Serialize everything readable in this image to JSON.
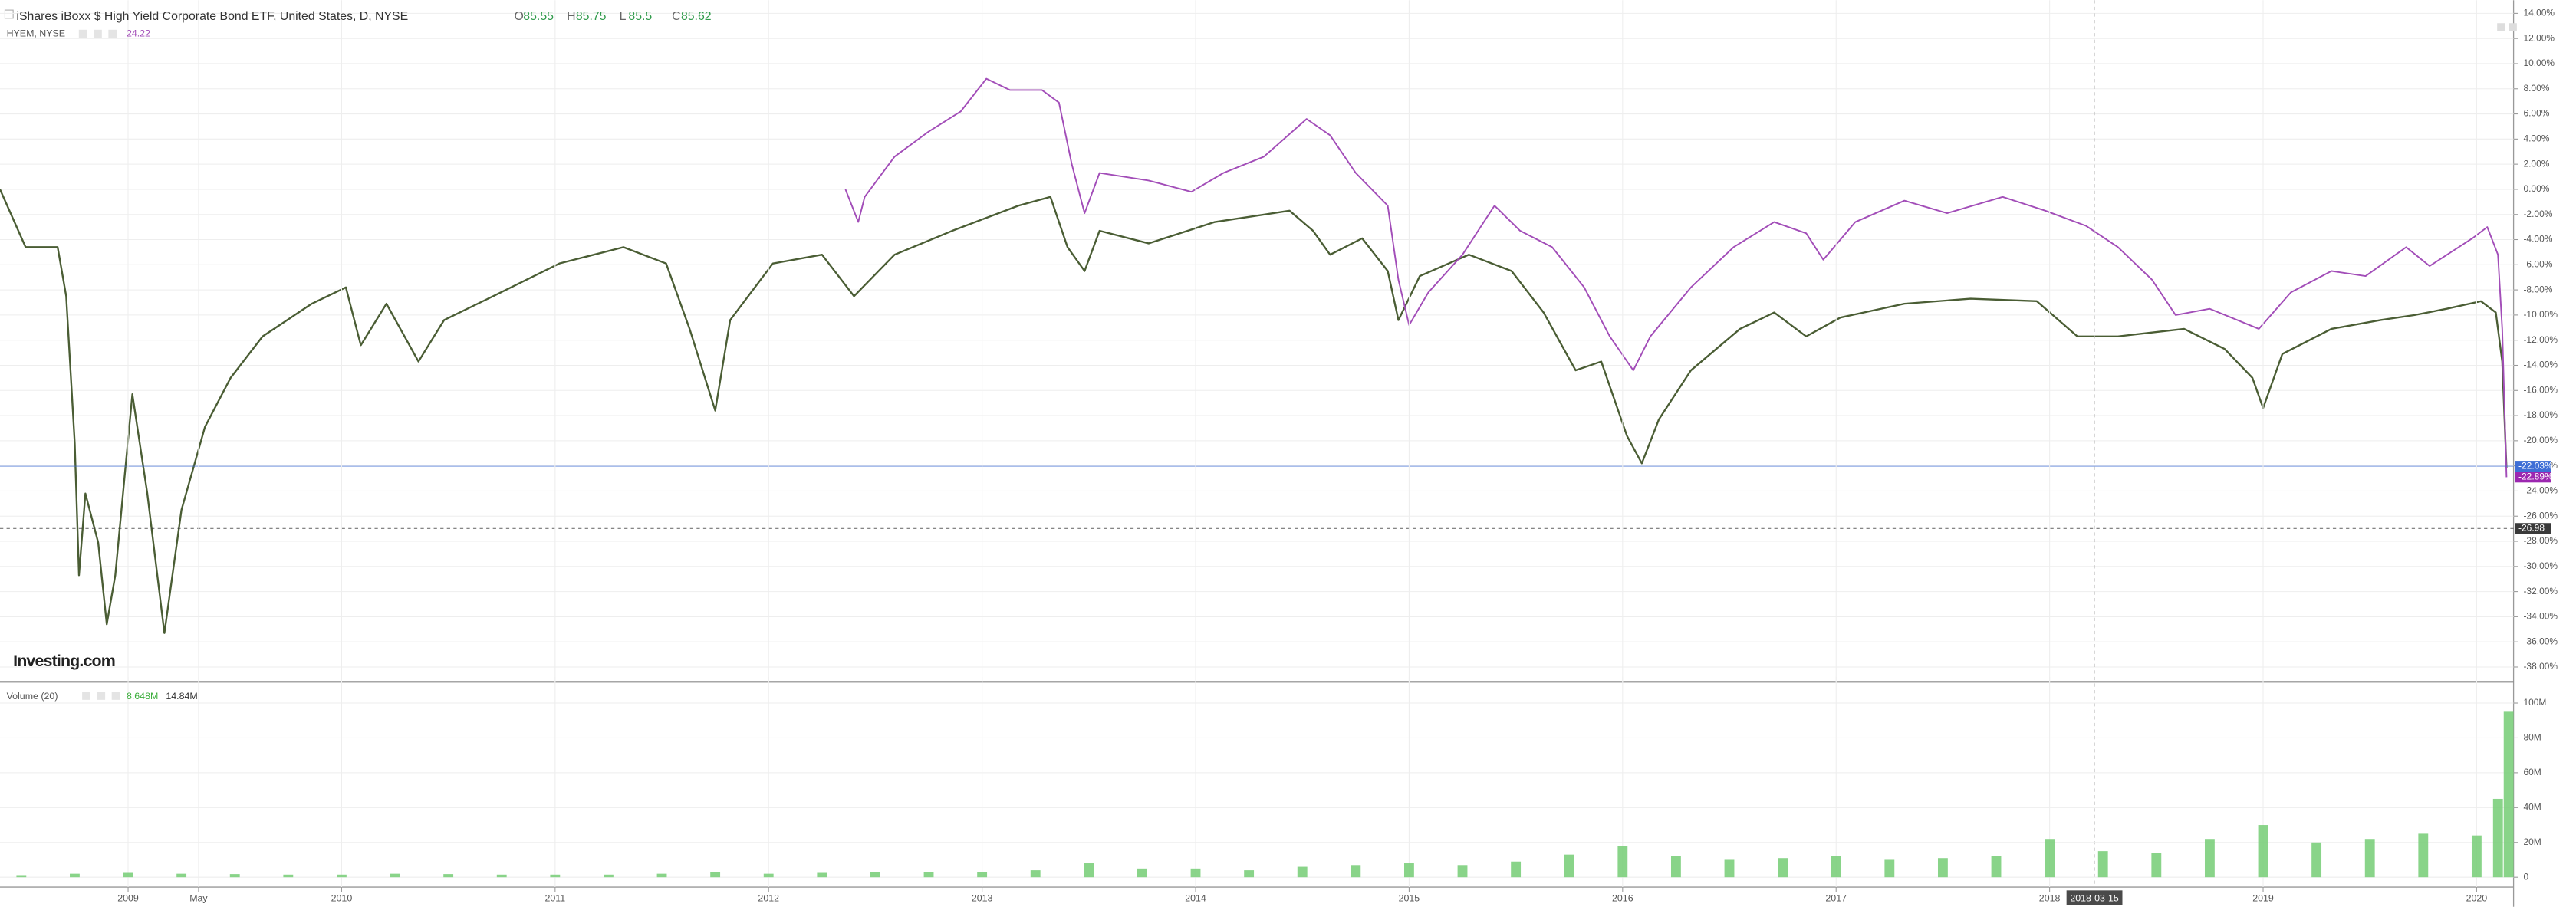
{
  "header": {
    "title": "iShares iBoxx $ High Yield Corporate Bond ETF, United States, D, NYSE",
    "ohlc": [
      {
        "label": "O",
        "value": 85.55
      },
      {
        "label": "H",
        "value": 85.75
      },
      {
        "label": "L",
        "value": 85.5
      },
      {
        "label": "C",
        "value": 85.62
      }
    ],
    "compare_value": 24.22,
    "volume_name": "Volume (20)",
    "volume_values": [
      "8.648M",
      "14.84M"
    ],
    "logo": "Investing.com"
  },
  "chart_data": [
    {
      "type": "line",
      "xlim": [
        2008.4,
        2020.15
      ],
      "ylim": [
        -38,
        14
      ],
      "grid": true,
      "yticks": [
        {
          "value": 14,
          "label": "14.00%"
        },
        {
          "value": 12,
          "label": "12.00%"
        },
        {
          "value": 10,
          "label": "10.00%"
        },
        {
          "value": 8,
          "label": "8.00%"
        },
        {
          "value": 6,
          "label": "6.00%"
        },
        {
          "value": 4,
          "label": "4.00%"
        },
        {
          "value": 2,
          "label": "2.00%"
        },
        {
          "value": 0,
          "label": "0.00%"
        },
        {
          "value": -2,
          "label": "-2.00%"
        },
        {
          "value": -4,
          "label": "-4.00%"
        },
        {
          "value": -6,
          "label": "-6.00%"
        },
        {
          "value": -8,
          "label": "-8.00%"
        },
        {
          "value": -10,
          "label": "-10.00%"
        },
        {
          "value": -12,
          "label": "-12.00%"
        },
        {
          "value": -14,
          "label": "-14.00%"
        },
        {
          "value": -16,
          "label": "-16.00%"
        },
        {
          "value": -18,
          "label": "-18.00%"
        },
        {
          "value": -20,
          "label": "-20.00%"
        },
        {
          "value": -22,
          "label": "-22.00%"
        },
        {
          "value": -24,
          "label": "-24.00%"
        },
        {
          "value": -26,
          "label": "-26.00%"
        },
        {
          "value": -28,
          "label": "-28.00%"
        },
        {
          "value": -30,
          "label": "-30.00%"
        },
        {
          "value": -32,
          "label": "-32.00%"
        },
        {
          "value": -34,
          "label": "-34.00%"
        },
        {
          "value": -36,
          "label": "-36.00%"
        },
        {
          "value": -38,
          "label": "-38.00%"
        }
      ],
      "series": [
        {
          "color": "#4a5d34",
          "x": [
            2008.4,
            2008.52,
            2008.67,
            2008.71,
            2008.75,
            2008.77,
            2008.8,
            2008.86,
            2008.9,
            2008.94,
            2009.02,
            2009.09,
            2009.17,
            2009.25,
            2009.36,
            2009.48,
            2009.63,
            2009.86,
            2010.02,
            2010.09,
            2010.21,
            2010.36,
            2010.48,
            2010.71,
            2011.02,
            2011.32,
            2011.52,
            2011.63,
            2011.75,
            2011.82,
            2012.02,
            2012.25,
            2012.4,
            2012.59,
            2012.86,
            2013.17,
            2013.32,
            2013.4,
            2013.48,
            2013.55,
            2013.78,
            2014.09,
            2014.44,
            2014.55,
            2014.63,
            2014.78,
            2014.9,
            2014.95,
            2015.05,
            2015.28,
            2015.48,
            2015.63,
            2015.78,
            2015.9,
            2016.02,
            2016.09,
            2016.17,
            2016.32,
            2016.55,
            2016.71,
            2016.86,
            2017.02,
            2017.32,
            2017.63,
            2017.94,
            2018.13,
            2018.32,
            2018.63,
            2018.82,
            2018.95,
            2019.0,
            2019.09,
            2019.32,
            2019.55,
            2019.71,
            2019.86,
            2020.02,
            2020.09,
            2020.12,
            2020.14
          ],
          "values": [
            0.0,
            -4.6,
            -4.6,
            -8.5,
            -20.2,
            -30.7,
            -24.2,
            -28.1,
            -34.6,
            -30.7,
            -16.3,
            -24.2,
            -35.3,
            -25.5,
            -18.9,
            -15.0,
            -11.7,
            -9.1,
            -7.8,
            -12.4,
            -9.1,
            -13.7,
            -10.4,
            -8.5,
            -5.9,
            -4.6,
            -5.9,
            -11.1,
            -17.6,
            -10.4,
            -5.9,
            -5.2,
            -8.5,
            -5.2,
            -3.3,
            -1.3,
            -0.6,
            -4.6,
            -6.5,
            -3.3,
            -4.3,
            -2.6,
            -1.7,
            -3.3,
            -5.2,
            -3.9,
            -6.5,
            -10.4,
            -6.9,
            -5.2,
            -6.5,
            -9.8,
            -14.4,
            -13.7,
            -19.6,
            -21.8,
            -18.3,
            -14.4,
            -11.1,
            -9.8,
            -11.7,
            -10.2,
            -9.1,
            -8.7,
            -8.9,
            -11.7,
            -11.7,
            -11.1,
            -12.7,
            -15.0,
            -17.4,
            -13.1,
            -11.1,
            -10.4,
            -10.0,
            -9.5,
            -8.9,
            -9.8,
            -13.7,
            -22.2
          ]
        },
        {
          "name": "HYEM, NYSE",
          "color": "#a24db8",
          "x": [
            2012.36,
            2012.42,
            2012.45,
            2012.59,
            2012.75,
            2012.9,
            2013.02,
            2013.13,
            2013.28,
            2013.36,
            2013.42,
            2013.48,
            2013.55,
            2013.78,
            2013.98,
            2014.13,
            2014.32,
            2014.52,
            2014.63,
            2014.75,
            2014.9,
            2014.95,
            2015.0,
            2015.09,
            2015.25,
            2015.4,
            2015.52,
            2015.67,
            2015.82,
            2015.94,
            2016.05,
            2016.13,
            2016.32,
            2016.52,
            2016.71,
            2016.86,
            2016.94,
            2017.09,
            2017.32,
            2017.52,
            2017.78,
            2017.98,
            2018.17,
            2018.32,
            2018.48,
            2018.59,
            2018.75,
            2018.98,
            2019.13,
            2019.32,
            2019.48,
            2019.67,
            2019.78,
            2019.98,
            2020.05,
            2020.1,
            2020.12,
            2020.14
          ],
          "values": [
            0.0,
            -2.6,
            -0.6,
            2.6,
            4.6,
            6.2,
            8.8,
            7.9,
            7.9,
            6.9,
            2.0,
            -1.9,
            1.3,
            0.7,
            -0.2,
            1.3,
            2.6,
            5.6,
            4.3,
            1.3,
            -1.3,
            -7.2,
            -10.8,
            -8.2,
            -5.2,
            -1.3,
            -3.3,
            -4.6,
            -7.8,
            -11.7,
            -14.4,
            -11.7,
            -7.8,
            -4.6,
            -2.6,
            -3.5,
            -5.6,
            -2.6,
            -0.9,
            -1.9,
            -0.6,
            -1.7,
            -2.9,
            -4.6,
            -7.2,
            -10.0,
            -9.5,
            -11.1,
            -8.2,
            -6.5,
            -6.9,
            -4.6,
            -6.1,
            -3.9,
            -3.0,
            -5.2,
            -11.1,
            -22.9
          ]
        }
      ],
      "markers": [
        {
          "value": -22.03,
          "label": "-22.03%",
          "color": "#3f6fd6",
          "line": "solid"
        },
        {
          "value": -22.89,
          "label": "-22.89%",
          "color": "#9c27b0"
        },
        {
          "value": -26.98,
          "label": "-26.98",
          "color": "#3a3a3a",
          "line": "dashed"
        }
      ],
      "crosshair": {
        "x": 2018.21,
        "label": "2018-03-15"
      }
    },
    {
      "type": "bar",
      "color": "#74cc74",
      "xlim": [
        2008.4,
        2020.15
      ],
      "ylim": [
        0,
        107500000
      ],
      "grid": true,
      "yticks": [
        0,
        {
          "value": 20000000,
          "label": "20M"
        },
        {
          "value": 40000000,
          "label": "40M"
        },
        {
          "value": 60000000,
          "label": "60M"
        },
        {
          "value": 80000000,
          "label": "80M"
        },
        {
          "value": 100000000,
          "label": "100M"
        }
      ],
      "xticks": [
        {
          "value": 2009,
          "label": "2009"
        },
        {
          "value": 2009.33,
          "label": "May"
        },
        {
          "value": 2010,
          "label": "2010"
        },
        {
          "value": 2011,
          "label": "2011"
        },
        {
          "value": 2012,
          "label": "2012"
        },
        {
          "value": 2013,
          "label": "2013"
        },
        {
          "value": 2014,
          "label": "2014"
        },
        {
          "value": 2015,
          "label": "2015"
        },
        {
          "value": 2016,
          "label": "2016"
        },
        {
          "value": 2017,
          "label": "2017"
        },
        {
          "value": 2018,
          "label": "2018"
        },
        {
          "value": 2019,
          "label": "2019"
        },
        {
          "value": 2020,
          "label": "2020"
        }
      ],
      "x": [
        2008.5,
        2008.75,
        2009,
        2009.25,
        2009.5,
        2009.75,
        2010,
        2010.25,
        2010.5,
        2010.75,
        2011,
        2011.25,
        2011.5,
        2011.75,
        2012,
        2012.25,
        2012.5,
        2012.75,
        2013,
        2013.25,
        2013.5,
        2013.75,
        2014,
        2014.25,
        2014.5,
        2014.75,
        2015,
        2015.25,
        2015.5,
        2015.75,
        2016,
        2016.25,
        2016.5,
        2016.75,
        2017,
        2017.25,
        2017.5,
        2017.75,
        2018,
        2018.25,
        2018.5,
        2018.75,
        2019,
        2019.25,
        2019.5,
        2019.75,
        2020,
        2020.1,
        2020.15
      ],
      "values": [
        1200000,
        2000000,
        2500000,
        2000000,
        1800000,
        1500000,
        1500000,
        2000000,
        1800000,
        1500000,
        1500000,
        1500000,
        2000000,
        3000000,
        2000000,
        2500000,
        3000000,
        3000000,
        3000000,
        4000000,
        8000000,
        5000000,
        5000000,
        4000000,
        6000000,
        7000000,
        8000000,
        7000000,
        9000000,
        13000000,
        18000000,
        12000000,
        10000000,
        11000000,
        12000000,
        10000000,
        11000000,
        12000000,
        22000000,
        15000000,
        14000000,
        22000000,
        30000000,
        20000000,
        22000000,
        25000000,
        24000000,
        45000000,
        95000000
      ]
    }
  ]
}
